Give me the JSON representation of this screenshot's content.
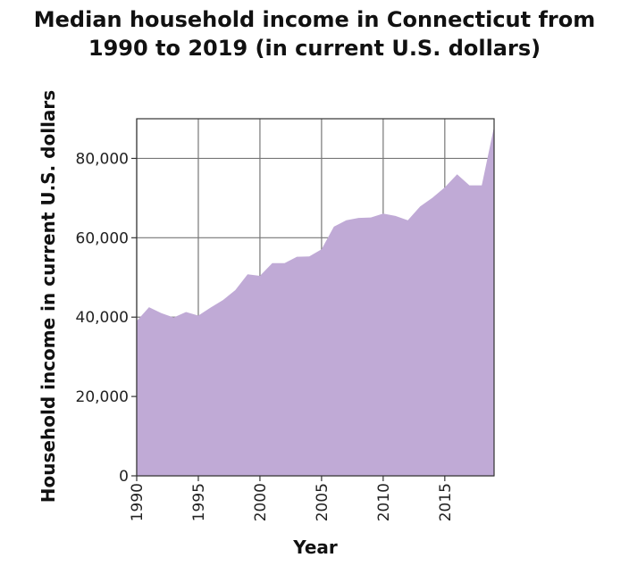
{
  "chart_data": {
    "type": "area",
    "title_line1": "Median household income in Connecticut from",
    "title_line2": "1990 to 2019 (in current U.S. dollars)",
    "xlabel": "Year",
    "ylabel": "Household income in current U.S. dollars",
    "xlim": [
      1990,
      2019
    ],
    "ylim": [
      0,
      90000
    ],
    "x_ticks": [
      1990,
      1995,
      2000,
      2005,
      2010,
      2015
    ],
    "x_tick_labels": [
      "1990",
      "1995",
      "2000",
      "2005",
      "2010",
      "2015"
    ],
    "y_ticks": [
      0,
      20000,
      40000,
      60000,
      80000
    ],
    "y_tick_labels": [
      "0",
      "20,000",
      "40,000",
      "60,000",
      "80,000"
    ],
    "grid": true,
    "fill_color": "#c0aad6",
    "x": [
      1990,
      1991,
      1992,
      1993,
      1994,
      1995,
      1996,
      1997,
      1998,
      1999,
      2000,
      2001,
      2002,
      2003,
      2004,
      2005,
      2006,
      2007,
      2008,
      2009,
      2010,
      2011,
      2012,
      2013,
      2014,
      2015,
      2016,
      2017,
      2018,
      2019
    ],
    "values": [
      39000,
      42500,
      41000,
      39900,
      41300,
      40400,
      42400,
      44300,
      46800,
      50800,
      50400,
      53600,
      53600,
      55200,
      55300,
      57100,
      62800,
      64400,
      65000,
      65100,
      66100,
      65500,
      64400,
      67900,
      70100,
      72700,
      76000,
      73200,
      73200,
      88000
    ]
  }
}
